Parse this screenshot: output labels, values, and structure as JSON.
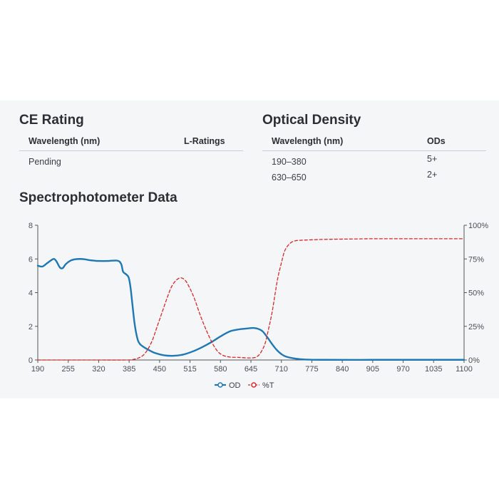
{
  "ce_rating": {
    "title": "CE Rating",
    "columns": [
      "Wavelength (nm)",
      "L-Ratings"
    ],
    "rows": [
      [
        "Pending",
        ""
      ]
    ]
  },
  "optical_density": {
    "title": "Optical Density",
    "columns": [
      "Wavelength (nm)",
      "ODs"
    ],
    "rows": [
      [
        "190–380",
        "5+"
      ],
      [
        "630–650",
        "2+"
      ]
    ]
  },
  "spectro": {
    "title": "Spectrophotometer Data"
  },
  "colors": {
    "od": "#1f77b4",
    "t": "#d62728",
    "axis": "#555555",
    "panel": "#f4f6f8"
  },
  "chart_data": {
    "type": "line",
    "xlim": [
      190,
      1100
    ],
    "ylim_left": [
      0,
      8
    ],
    "ylim_right": [
      0,
      100
    ],
    "x_ticks": [
      "190",
      "255",
      "320",
      "385",
      "450",
      "515",
      "580",
      "645",
      "710",
      "775",
      "840",
      "905",
      "970",
      "1035",
      "1100"
    ],
    "y_ticks_left": [
      "0",
      "2",
      "4",
      "6",
      "8"
    ],
    "y_ticks_right": [
      "0%",
      "25%",
      "50%",
      "75%",
      "100%"
    ],
    "grid": false,
    "legend_position": "bottom-center",
    "series": [
      {
        "name": "OD",
        "axis": "left",
        "style": "solid",
        "x": [
          190,
          200,
          210,
          220,
          225,
          230,
          237,
          243,
          250,
          260,
          270,
          280,
          290,
          300,
          310,
          320,
          340,
          360,
          368,
          372,
          378,
          384,
          388,
          392,
          396,
          400,
          404,
          408,
          412,
          420,
          430,
          440,
          460,
          480,
          500,
          520,
          540,
          560,
          580,
          600,
          620,
          640,
          650,
          660,
          670,
          680,
          690,
          700,
          710,
          720,
          740,
          760,
          800,
          900,
          1000,
          1100
        ],
        "y": [
          5.6,
          5.55,
          5.75,
          5.95,
          6.0,
          5.85,
          5.5,
          5.45,
          5.7,
          5.9,
          5.98,
          6.0,
          5.98,
          5.93,
          5.9,
          5.88,
          5.88,
          5.9,
          5.7,
          5.25,
          5.1,
          4.9,
          4.3,
          3.3,
          2.3,
          1.6,
          1.15,
          0.95,
          0.85,
          0.7,
          0.55,
          0.42,
          0.28,
          0.25,
          0.32,
          0.5,
          0.75,
          1.05,
          1.4,
          1.7,
          1.82,
          1.88,
          1.9,
          1.85,
          1.7,
          1.35,
          0.95,
          0.6,
          0.35,
          0.2,
          0.08,
          0.03,
          0.01,
          0.01,
          0.01,
          0.01
        ]
      },
      {
        "name": "%T",
        "axis": "right",
        "style": "dashed",
        "x": [
          190,
          300,
          380,
          395,
          405,
          415,
          425,
          435,
          445,
          455,
          465,
          475,
          485,
          495,
          505,
          515,
          525,
          535,
          545,
          555,
          565,
          575,
          585,
          595,
          605,
          615,
          625,
          640,
          655,
          665,
          675,
          682,
          690,
          697,
          703,
          710,
          716,
          722,
          730,
          740,
          760,
          800,
          860,
          900,
          950,
          1000,
          1050,
          1100
        ],
        "y": [
          0,
          0,
          0,
          0.5,
          1.5,
          3.5,
          8,
          15,
          25,
          35,
          45,
          54,
          59,
          61,
          59,
          53,
          45,
          35,
          26,
          18,
          11,
          6,
          3.5,
          2.5,
          2,
          2,
          1.8,
          1.5,
          2,
          5,
          12,
          22,
          35,
          50,
          62,
          72,
          80,
          84,
          87,
          88.5,
          89,
          89.5,
          89.8,
          90,
          90,
          90,
          90,
          90
        ]
      }
    ]
  }
}
